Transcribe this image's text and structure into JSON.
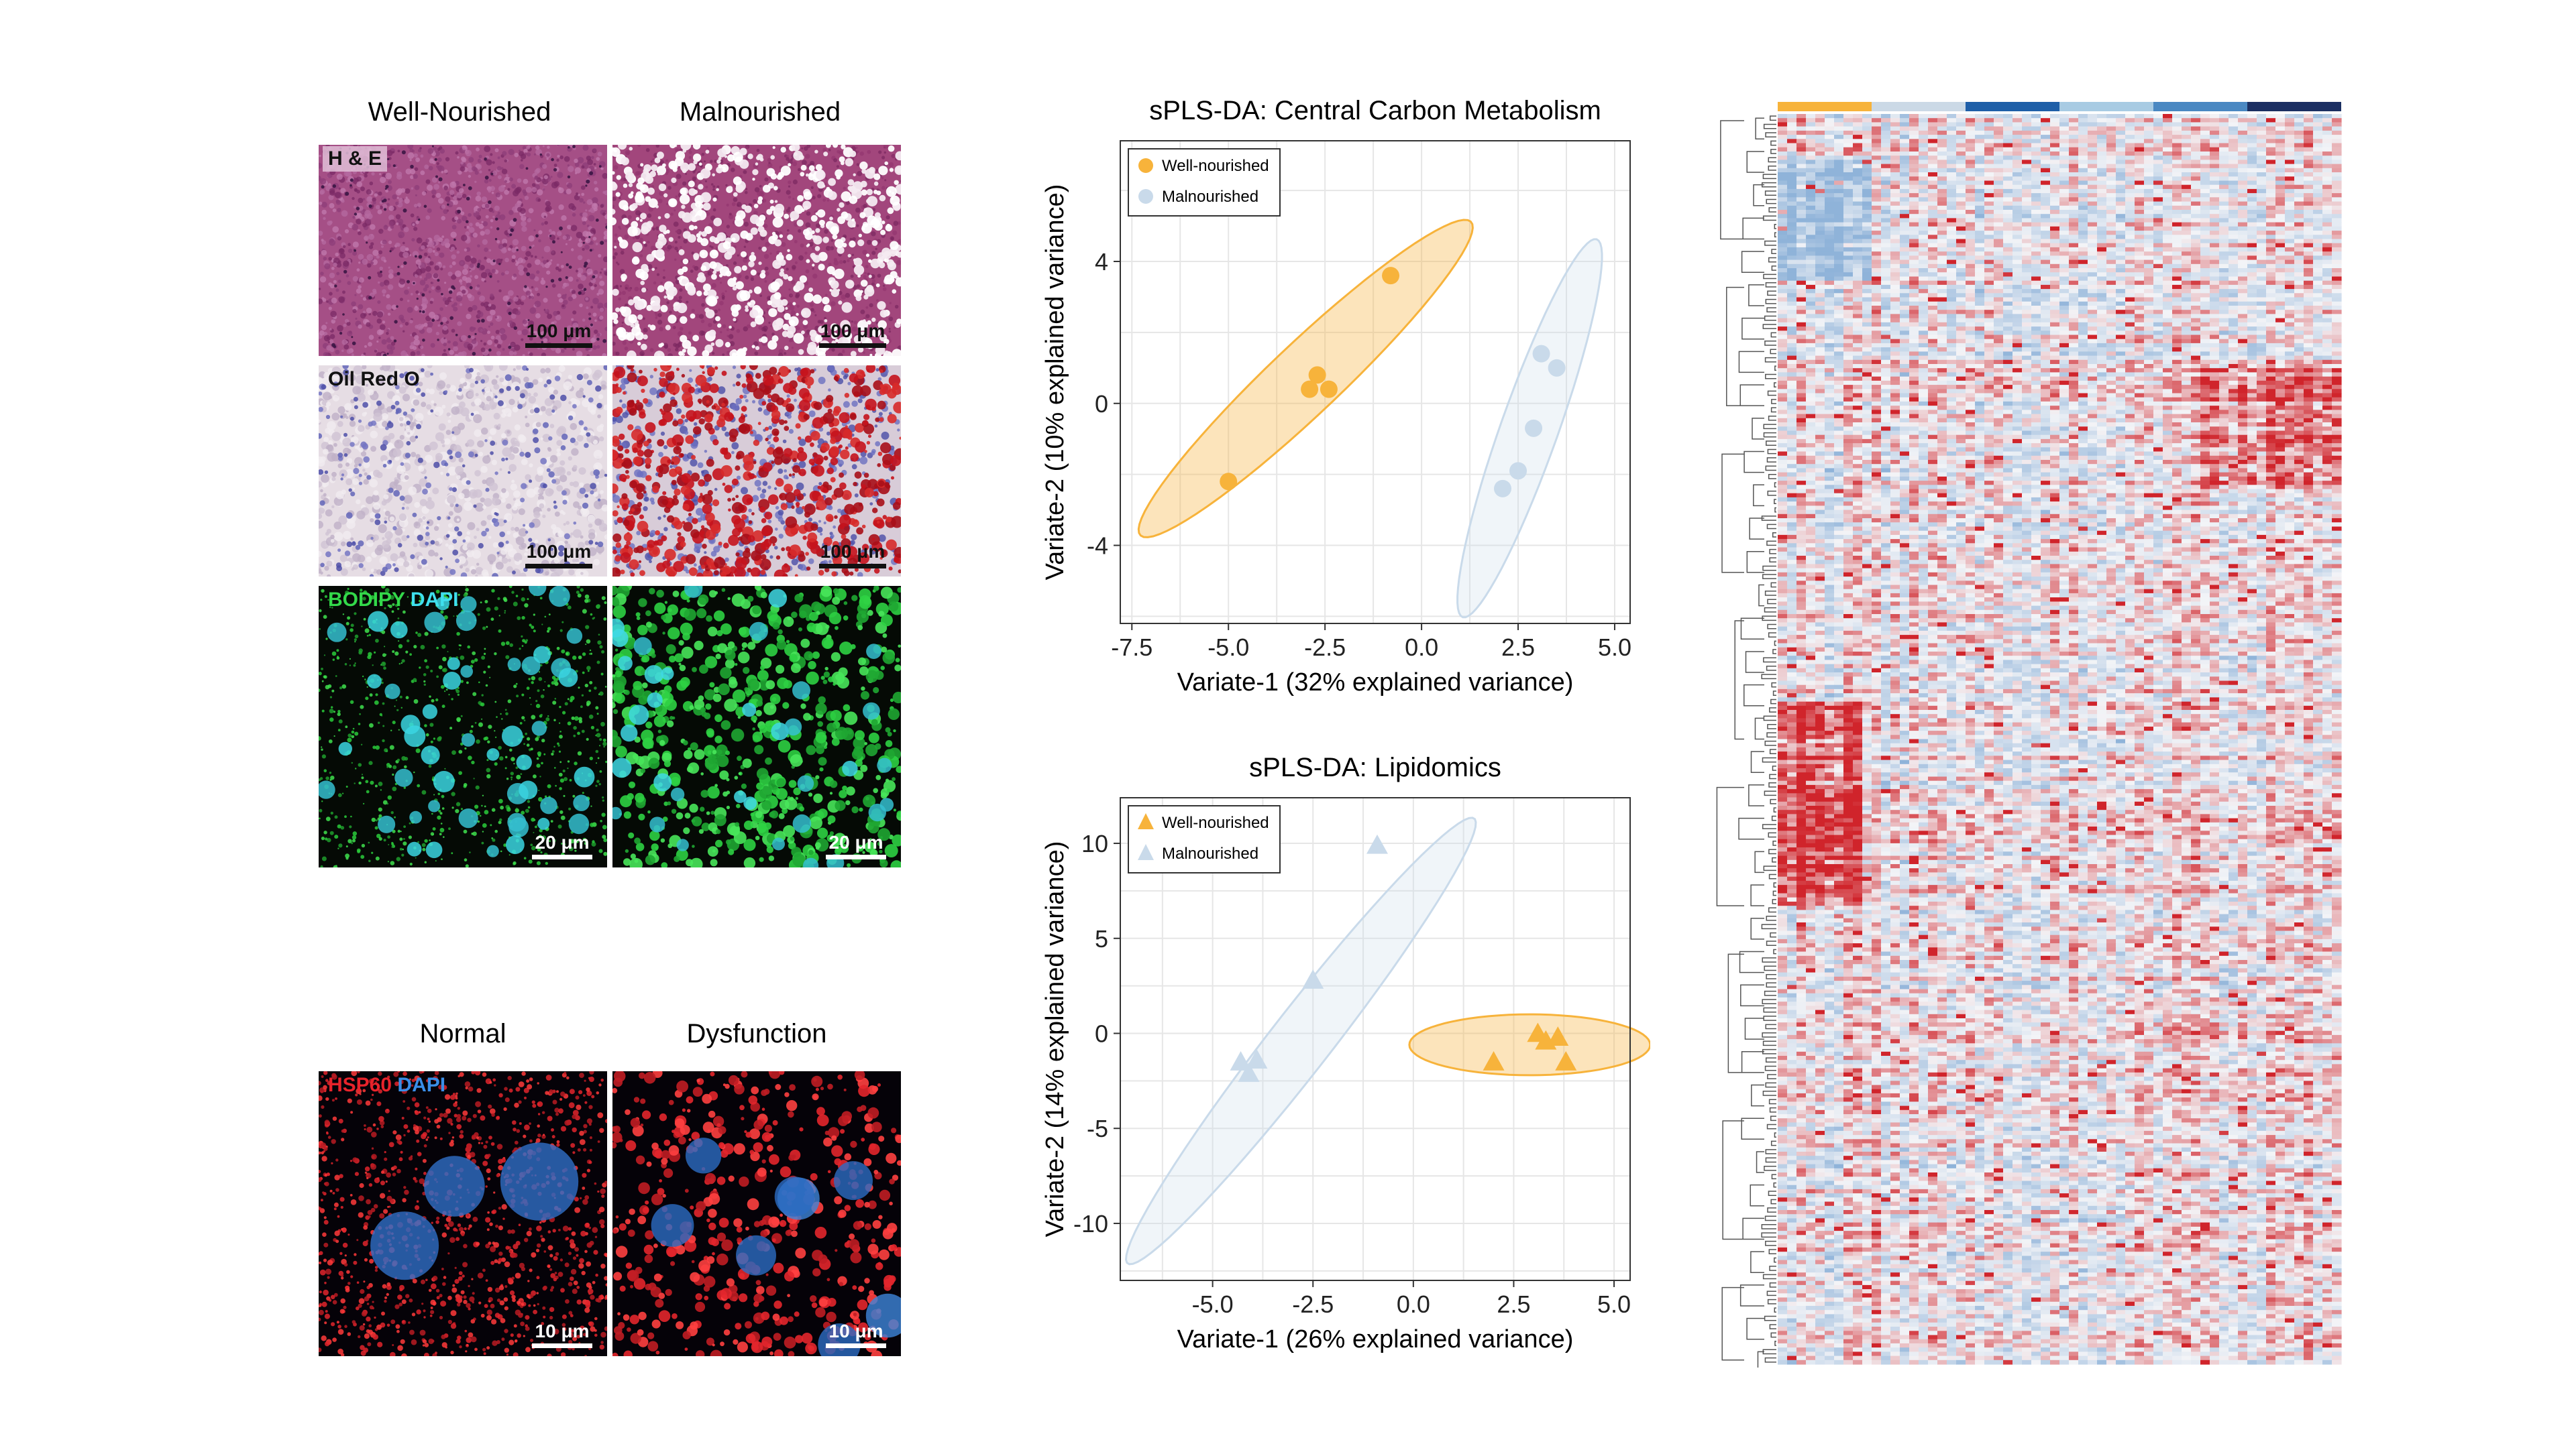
{
  "column_labels": {
    "well": "Well-Nourished",
    "mal": "Malnourished"
  },
  "stain_labels": {
    "he": "H & E",
    "oro": "Oil Red O"
  },
  "bodipy_label": {
    "a": "BODIPY",
    "b": "DAPI"
  },
  "scale_labels": {
    "s100": "100 μm",
    "s20": "20 μm",
    "s10": "10 μm"
  },
  "mito_labels": {
    "normal": "Normal",
    "dys": "Dysfunction"
  },
  "hsp_label": {
    "a": "HSP60",
    "b": "DAPI"
  },
  "colors": {
    "well": "#F7B33B",
    "mal": "#C9DAEA",
    "heat_high": "#D0242B",
    "heat_low": "#8FB3D9"
  },
  "chart_data": [
    {
      "type": "scatter",
      "title": "sPLS-DA: Central Carbon Metabolism",
      "xlabel": "Variate-1 (32% explained variance)",
      "ylabel": "Variate-2 (10% explained variance)",
      "xlim": [
        -7.8,
        5.4
      ],
      "ylim": [
        -6.2,
        7.4
      ],
      "xticks": [
        -7.5,
        -5.0,
        -2.5,
        0.0,
        2.5,
        5.0
      ],
      "xtick_labels": [
        "-7.5",
        "-5.0",
        "-2.5",
        "0.0",
        "2.5",
        "5.0"
      ],
      "yticks": [
        -4,
        0,
        4
      ],
      "ytick_labels": [
        "-4",
        "0",
        "4"
      ],
      "grid": true,
      "legend": "top-left",
      "marker": "circle",
      "series": [
        {
          "name": "Well-nourished",
          "x": [
            -5.0,
            -2.7,
            -2.9,
            -2.4,
            -0.8
          ],
          "y": [
            -2.2,
            0.8,
            0.4,
            0.4,
            3.6
          ]
        },
        {
          "name": "Malnourished",
          "x": [
            2.1,
            2.5,
            2.9,
            3.1,
            3.5
          ],
          "y": [
            -2.4,
            -1.9,
            -0.7,
            1.4,
            1.0
          ]
        }
      ],
      "ellipses": [
        {
          "cx": -3.0,
          "cy": 0.7,
          "rx": 6.15,
          "ry": 0.95,
          "angle": 46
        },
        {
          "cx": 2.8,
          "cy": -0.7,
          "rx": 5.6,
          "ry": 0.75,
          "angle": 72
        }
      ]
    },
    {
      "type": "scatter",
      "title": "sPLS-DA: Lipidomics",
      "xlabel": "Variate-1 (26% explained variance)",
      "ylabel": "Variate-2 (14% explained variance)",
      "xlim": [
        -7.3,
        5.4
      ],
      "ylim": [
        -13.0,
        12.4
      ],
      "xticks": [
        -5.0,
        -2.5,
        0.0,
        2.5,
        5.0
      ],
      "xtick_labels": [
        "-5.0",
        "-2.5",
        "0.0",
        "2.5",
        "5.0"
      ],
      "yticks": [
        -10,
        -5,
        0,
        5,
        10
      ],
      "ytick_labels": [
        "-10",
        "-5",
        "0",
        "5",
        "10"
      ],
      "grid": true,
      "legend": "top-left",
      "marker": "triangle",
      "series": [
        {
          "name": "Well-nourished",
          "x": [
            2.0,
            3.1,
            3.3,
            3.6,
            3.8
          ],
          "y": [
            -1.5,
            0.0,
            -0.4,
            -0.2,
            -1.5
          ]
        },
        {
          "name": "Malnourished",
          "x": [
            -4.3,
            -3.9,
            -4.1,
            -2.5,
            -0.9
          ],
          "y": [
            -1.5,
            -1.4,
            -2.1,
            2.8,
            9.9
          ]
        }
      ],
      "ellipses": [
        {
          "cx": 2.9,
          "cy": -0.6,
          "rx": 3.0,
          "ry": 1.6,
          "angle": 0
        },
        {
          "cx": -2.8,
          "cy": -0.4,
          "rx": 12.5,
          "ry": 0.9,
          "angle": 70
        }
      ]
    },
    {
      "type": "heatmap",
      "column_groups": [
        "#F7B33B",
        "#CBD9E6",
        "#1F5FA8",
        "#A8CBE3",
        "#4A88C2",
        "#1B2F62"
      ],
      "color_scale": [
        "#8FB3D9",
        "#F3F4F7",
        "#D0242B"
      ]
    }
  ]
}
